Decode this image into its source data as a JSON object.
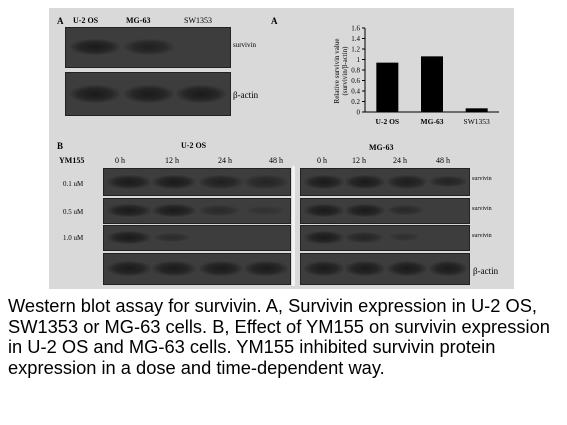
{
  "panelA": {
    "letter": "A",
    "letter_chart": "A",
    "lanes": [
      "U-2 OS",
      "MG-63",
      "SW1353"
    ],
    "row_labels": [
      "survivin",
      "β-actin"
    ]
  },
  "chart_data": {
    "type": "bar",
    "categories": [
      "U-2 OS",
      "MG-63",
      "SW1353"
    ],
    "values": [
      0.94,
      1.06,
      0.07
    ],
    "ylabel": "Relative survivin value (survivin/β-actin)",
    "ylim": [
      0,
      1.6
    ],
    "yticks": [
      "0",
      "0.2",
      "0.4",
      "0.6",
      "0.8",
      "1",
      "1.2",
      "1.4",
      "1.6"
    ],
    "grid": false
  },
  "panelB": {
    "letter": "B",
    "drug": "YM155",
    "times": [
      "0 h",
      "12 h",
      "24 h",
      "48 h"
    ],
    "doses": [
      "0.1 uM",
      "0.5 uM",
      "1.0 uM"
    ],
    "left_title": "U-2 OS",
    "right_title": "MG-63",
    "row_labels": [
      "survivin",
      "survivin",
      "survivin"
    ],
    "actin_label": "β-actin"
  },
  "caption": "Western blot assay for survivin. A, Survivin expression in U-2 OS, SW1353 or MG-63 cells. B, Effect of YM155 on survivin expression in U-2 OS and MG-63 cells. YM155 inhibited survivin protein expression in a dose and time-dependent way."
}
